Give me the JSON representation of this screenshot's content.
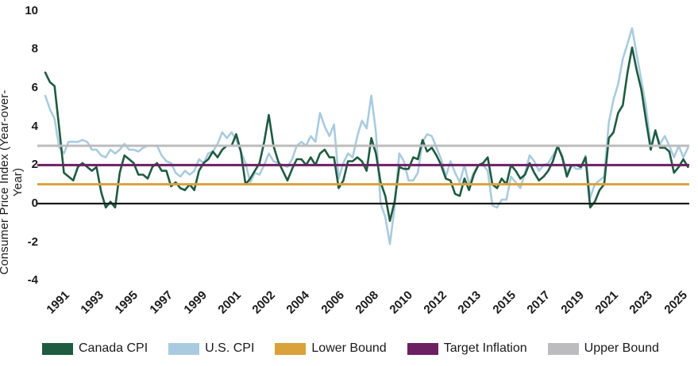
{
  "chart_data": {
    "type": "line",
    "title": "",
    "xlabel": "",
    "ylabel": "Consumer Price Index (Year-over-Year)",
    "ylim": [
      -4,
      10
    ],
    "yticks": [
      10,
      8,
      6,
      4,
      2,
      0,
      -2,
      -4
    ],
    "xticklabels": [
      "1991",
      "1993",
      "1995",
      "1997",
      "1999",
      "2001",
      "2002",
      "2004",
      "2006",
      "2008",
      "2010",
      "2012",
      "2013",
      "2015",
      "2017",
      "2019",
      "2021",
      "2023",
      "2025"
    ],
    "x_start": 1991.0,
    "x_step": 0.25,
    "x_end": 2025.5,
    "grid": false,
    "legend_position": "bottom",
    "series": [
      {
        "name": "U.S. CPI",
        "color": "#a9cbdf",
        "values": [
          5.6,
          4.9,
          4.4,
          2.9,
          2.6,
          3.2,
          3.2,
          3.2,
          3.3,
          3.2,
          2.8,
          2.8,
          2.5,
          2.4,
          2.8,
          2.6,
          2.8,
          3.1,
          2.8,
          2.8,
          2.7,
          2.9,
          3.0,
          3.0,
          3.0,
          2.5,
          2.2,
          2.1,
          1.6,
          1.4,
          1.7,
          1.5,
          1.7,
          2.3,
          2.1,
          2.6,
          2.7,
          3.1,
          3.7,
          3.4,
          3.7,
          3.3,
          2.7,
          2.1,
          1.1,
          1.6,
          1.5,
          2.0,
          2.6,
          2.2,
          2.1,
          2.0,
          1.9,
          2.3,
          3.0,
          3.2,
          3.0,
          3.5,
          3.2,
          4.7,
          4.0,
          3.5,
          4.1,
          1.3,
          2.1,
          2.6,
          2.4,
          3.5,
          4.3,
          3.9,
          5.6,
          3.7,
          0.0,
          -0.7,
          -2.1,
          -0.2,
          2.6,
          2.2,
          1.2,
          1.2,
          1.6,
          3.2,
          3.6,
          3.5,
          2.9,
          2.3,
          1.4,
          2.2,
          1.6,
          1.1,
          2.0,
          1.0,
          1.6,
          2.0,
          2.0,
          1.7,
          -0.1,
          -0.2,
          0.2,
          0.2,
          1.4,
          1.1,
          0.8,
          1.6,
          2.5,
          2.2,
          1.7,
          2.0,
          2.1,
          2.5,
          2.9,
          2.5,
          1.6,
          2.0,
          1.8,
          1.8,
          2.5,
          0.3,
          1.0,
          1.2,
          1.4,
          4.2,
          5.4,
          6.2,
          7.5,
          8.3,
          9.1,
          7.7,
          6.4,
          5.0,
          3.0,
          3.7,
          3.1,
          3.5,
          3.0,
          2.4,
          3.0,
          2.4,
          2.9
        ]
      },
      {
        "name": "Canada CPI",
        "color": "#1e5b40",
        "values": [
          6.8,
          6.3,
          6.1,
          3.9,
          1.6,
          1.4,
          1.2,
          1.9,
          2.1,
          1.9,
          1.7,
          1.9,
          0.6,
          -0.2,
          0.1,
          -0.2,
          1.6,
          2.5,
          2.3,
          2.1,
          1.5,
          1.5,
          1.3,
          1.9,
          2.1,
          1.7,
          1.7,
          0.9,
          1.1,
          0.8,
          0.7,
          1.0,
          0.7,
          1.7,
          2.1,
          2.3,
          2.7,
          2.4,
          2.8,
          3.0,
          3.0,
          3.6,
          2.7,
          1.0,
          1.3,
          1.7,
          2.1,
          3.2,
          4.6,
          3.0,
          2.2,
          1.7,
          1.2,
          1.8,
          2.3,
          2.3,
          2.0,
          2.4,
          2.0,
          2.6,
          2.8,
          2.4,
          2.4,
          0.8,
          1.2,
          2.2,
          2.2,
          2.4,
          2.2,
          1.7,
          3.4,
          2.6,
          1.1,
          0.4,
          -0.9,
          0.1,
          1.9,
          1.8,
          1.8,
          2.4,
          2.3,
          3.3,
          2.7,
          2.9,
          2.5,
          2.0,
          1.3,
          1.2,
          0.5,
          0.4,
          1.3,
          0.7,
          1.5,
          2.0,
          2.1,
          2.4,
          1.0,
          0.8,
          1.3,
          1.0,
          2.0,
          1.7,
          1.3,
          1.5,
          2.1,
          1.6,
          1.2,
          1.4,
          1.7,
          2.2,
          3.0,
          2.4,
          1.4,
          2.0,
          2.0,
          1.9,
          2.4,
          -0.2,
          0.1,
          0.7,
          1.0,
          3.4,
          3.7,
          4.7,
          5.1,
          6.8,
          8.1,
          6.9,
          5.9,
          4.3,
          2.8,
          3.8,
          2.9,
          2.9,
          2.7,
          1.6,
          1.9,
          2.3,
          1.9
        ]
      }
    ],
    "reference_lines": [
      {
        "name": "zero-baseline",
        "value": 0,
        "color": "#1a1a1a"
      },
      {
        "name": "Lower Bound",
        "value": 1,
        "color": "#d9a23b"
      },
      {
        "name": "Target Inflation",
        "value": 2,
        "color": "#6d2061"
      },
      {
        "name": "Upper Bound",
        "value": 3,
        "color": "#bcbcbe"
      }
    ],
    "legend": [
      {
        "label": "Canada CPI",
        "color": "#1e5b40"
      },
      {
        "label": "U.S. CPI",
        "color": "#a9cbdf"
      },
      {
        "label": "Lower Bound",
        "color": "#d9a23b"
      },
      {
        "label": "Target Inflation",
        "color": "#6d2061"
      },
      {
        "label": "Upper Bound",
        "color": "#bcbcbe"
      }
    ]
  }
}
